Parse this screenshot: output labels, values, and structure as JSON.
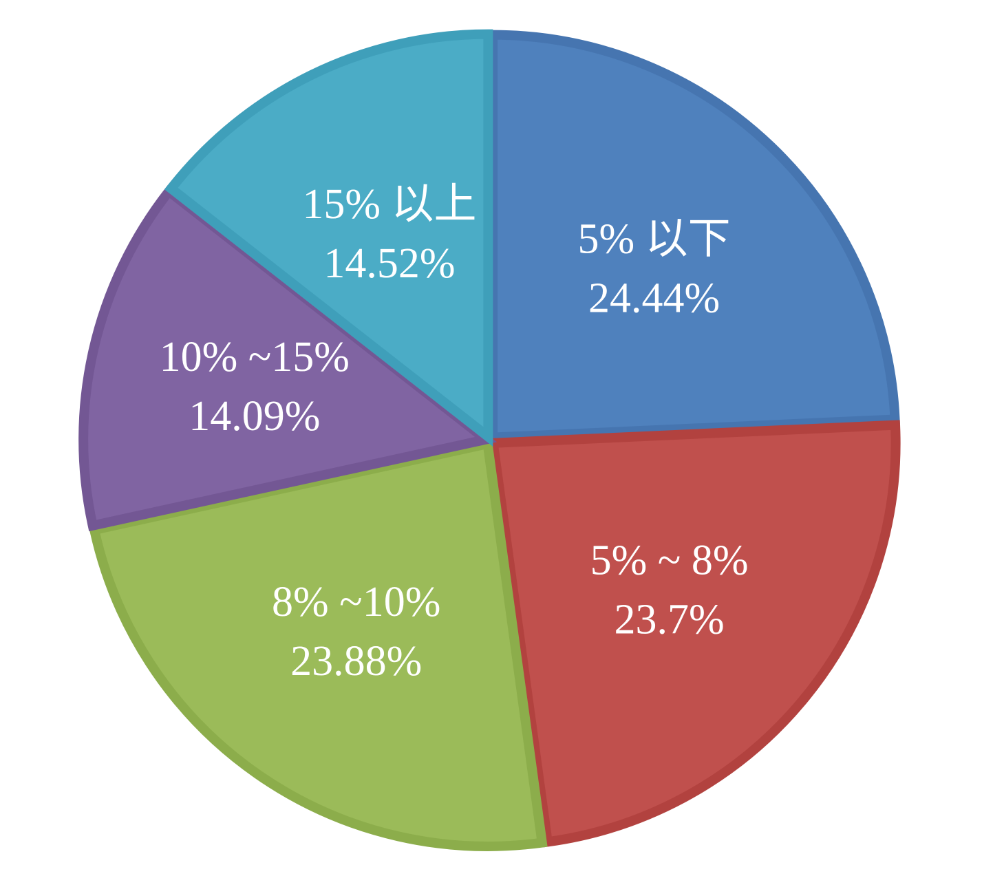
{
  "chart_data": {
    "type": "pie",
    "start_angle_deg": 0,
    "direction": "clockwise",
    "slices": [
      {
        "label": "5% 以下",
        "value": 24.44,
        "value_label": "24.44%",
        "color": "#4f81bd",
        "edge_color": "#4675b0"
      },
      {
        "label": "5% ~ 8%",
        "value": 23.7,
        "value_label": "23.7%",
        "color": "#c0504d",
        "edge_color": "#b2423f"
      },
      {
        "label": "8% ~10%",
        "value": 23.88,
        "value_label": "23.88%",
        "color": "#9bbb59",
        "edge_color": "#8cad4b"
      },
      {
        "label": "10% ~15%",
        "value": 14.09,
        "value_label": "14.09%",
        "color": "#8064a2",
        "edge_color": "#735794"
      },
      {
        "label": "15% 以上",
        "value": 14.52,
        "value_label": "14.52%",
        "color": "#4bacc6",
        "edge_color": "#3f9fba"
      }
    ]
  }
}
